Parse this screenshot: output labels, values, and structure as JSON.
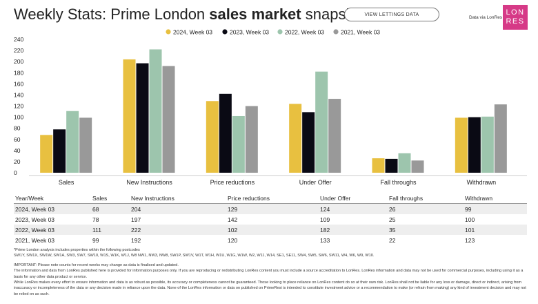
{
  "header": {
    "title_light": "Weekly Stats: Prime London ",
    "title_bold": "sales market",
    "title_end": " snapshot",
    "button_label": "VIEW LETTINGS DATA",
    "data_via": "Data via LonRes",
    "logo_line1": "LON",
    "logo_line2": "RES"
  },
  "chart_data": {
    "type": "bar",
    "categories": [
      "Sales",
      "New Instructions",
      "Price reductions",
      "Under Offer",
      "Fall throughs",
      "Withdrawn"
    ],
    "series": [
      {
        "name": "2024, Week 03",
        "color": "#e8c040",
        "values": [
          68,
          204,
          129,
          124,
          26,
          99
        ]
      },
      {
        "name": "2023, Week 03",
        "color": "#0a0a14",
        "values": [
          78,
          197,
          142,
          109,
          25,
          100
        ]
      },
      {
        "name": "2022, Week 03",
        "color": "#9dc5ad",
        "values": [
          111,
          222,
          102,
          182,
          35,
          101
        ]
      },
      {
        "name": "2021, Week 03",
        "color": "#999999",
        "values": [
          99,
          192,
          120,
          133,
          22,
          123
        ]
      }
    ],
    "ylim": [
      0,
      240
    ],
    "yticks": [
      0,
      20,
      40,
      60,
      80,
      100,
      120,
      140,
      160,
      180,
      200,
      220,
      240
    ],
    "legend_position": "top-center"
  },
  "table": {
    "headers": [
      "Year/Week",
      "Sales",
      "New Instructions",
      "Price reductions",
      "Under Offer",
      "Fall throughs",
      "Withdrawn"
    ],
    "rows": [
      [
        "2024, Week 03",
        "68",
        "204",
        "129",
        "124",
        "26",
        "99"
      ],
      [
        "2023, Week 03",
        "78",
        "197",
        "142",
        "109",
        "25",
        "100"
      ],
      [
        "2022, Week 03",
        "111",
        "222",
        "102",
        "182",
        "35",
        "101"
      ],
      [
        "2021, Week 03",
        "99",
        "192",
        "120",
        "133",
        "22",
        "123"
      ]
    ]
  },
  "notes": {
    "postcodes_intro": "*Prime London analysis includes properties within the following postcodes",
    "postcodes": "SW1Y, SW1X, SW1W, SW1A, SW3, SW7, SW10, W1S, W1K, W1J, W8 NW1, NW3, NW8, SW1P, SW1V, W1T, W1H, W1U, W1G, W1W, W2, W11, W14, SE1, SE11, SW4, SW5, SW6, SW11, W4, W6, W9, W10.",
    "important": "IMPORTANT: Please note counts for recent weeks may change as data is finalised and updated.",
    "disclaimer1": "The information and data from LonRes published here is provided for information purposes only. If you are reproducing or redistributing LonRes content you must include a source accreditation to LonRes. LonRes information and data may not be used for commercial purposes, including using it as a basis for any other data product or service.",
    "disclaimer2": "While LonRes makes every effort to ensure information and data is as robust as possible, its accuracy or completeness cannot be guaranteed. Those looking to place reliance on LonRes content do so at their own risk. LonRes shall not be liable for any loss or damage, direct or indirect, arising from inaccuracy or incompleteness of the data or any decision made in reliance upon the data. None of the LonRes information or data on published on PrimeResi is intended to constitute investment advice or a recommendation to make (or refrain from making) any kind of investment decision and may not be relied on as such."
  }
}
